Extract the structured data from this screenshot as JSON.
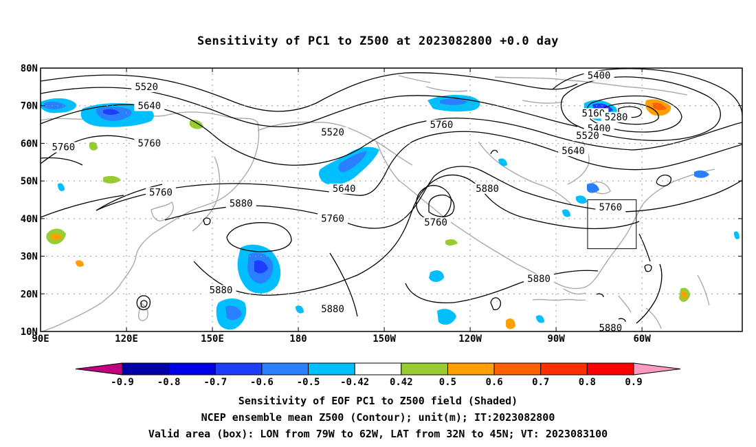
{
  "title": "Sensitivity of PC1 to Z500 at 2023082800 +0.0 day",
  "map": {
    "lon_range": [
      90,
      335
    ],
    "lat_range": [
      10,
      80
    ],
    "lat_ticks": [
      {
        "value": 10,
        "label": "10N"
      },
      {
        "value": 20,
        "label": "20N"
      },
      {
        "value": 30,
        "label": "30N"
      },
      {
        "value": 40,
        "label": "40N"
      },
      {
        "value": 50,
        "label": "50N"
      },
      {
        "value": 60,
        "label": "60N"
      },
      {
        "value": 70,
        "label": "70N"
      },
      {
        "value": 80,
        "label": "80N"
      }
    ],
    "lon_ticks": [
      {
        "value": 90,
        "label": "90E"
      },
      {
        "value": 120,
        "label": "120E"
      },
      {
        "value": 150,
        "label": "150E"
      },
      {
        "value": 180,
        "label": "180"
      },
      {
        "value": 210,
        "label": "150W"
      },
      {
        "value": 240,
        "label": "120W"
      },
      {
        "value": 270,
        "label": "90W"
      },
      {
        "value": 300,
        "label": "60W"
      }
    ],
    "grid": true,
    "valid_box": {
      "lon": [
        281,
        298
      ],
      "lat": [
        32,
        45
      ]
    },
    "contour_labels": [
      {
        "text": "5520",
        "lon": 127,
        "lat": 74.5
      },
      {
        "text": "5640",
        "lon": 128,
        "lat": 69.5
      },
      {
        "text": "5760",
        "lon": 98,
        "lat": 58.5
      },
      {
        "text": "5760",
        "lon": 128,
        "lat": 59.5
      },
      {
        "text": "5760",
        "lon": 132,
        "lat": 46.5
      },
      {
        "text": "5880",
        "lon": 160,
        "lat": 43.5
      },
      {
        "text": "5880",
        "lon": 153,
        "lat": 20.5
      },
      {
        "text": "5880",
        "lon": 192,
        "lat": 15.5
      },
      {
        "text": "5520",
        "lon": 192,
        "lat": 62.5
      },
      {
        "text": "5640",
        "lon": 196,
        "lat": 47.5
      },
      {
        "text": "5760",
        "lon": 192,
        "lat": 39.5
      },
      {
        "text": "5760",
        "lon": 230,
        "lat": 64.5
      },
      {
        "text": "5760",
        "lon": 228,
        "lat": 38.5
      },
      {
        "text": "5880",
        "lon": 246,
        "lat": 47.5
      },
      {
        "text": "5880",
        "lon": 264,
        "lat": 23.5
      },
      {
        "text": "5400",
        "lon": 285,
        "lat": 77.5
      },
      {
        "text": "5160",
        "lon": 283,
        "lat": 67.5
      },
      {
        "text": "5280",
        "lon": 291,
        "lat": 66.5
      },
      {
        "text": "5400",
        "lon": 285,
        "lat": 63.5
      },
      {
        "text": "5520",
        "lon": 281,
        "lat": 61.5
      },
      {
        "text": "5640",
        "lon": 276,
        "lat": 57.5
      },
      {
        "text": "5760",
        "lon": 289,
        "lat": 42.5
      },
      {
        "text": "5880",
        "lon": 289,
        "lat": 10.5
      }
    ]
  },
  "colorbar": {
    "ticks": [
      "-0.9",
      "-0.8",
      "-0.7",
      "-0.6",
      "-0.5",
      "-0.42",
      "0.42",
      "0.5",
      "0.6",
      "0.7",
      "0.8",
      "0.9"
    ],
    "colors": {
      "under": "#c0007f",
      "bins": [
        "#0000a8",
        "#0000e6",
        "#1f3dff",
        "#2a7fff",
        "#00bfff",
        "#ffffff",
        "#99cc33",
        "#ffa000",
        "#ff6000",
        "#ff3000",
        "#ff0000"
      ],
      "over": "#ff9ac0"
    }
  },
  "captions": {
    "line1": "Sensitivity of EOF PC1 to Z500 field (Shaded)",
    "line2": "NCEP ensemble mean Z500 (Contour); unit(m); IT:2023082800",
    "line3": "Valid area (box): LON from 79W to 62W, LAT from 32N to 45N; VT: 2023083100"
  }
}
